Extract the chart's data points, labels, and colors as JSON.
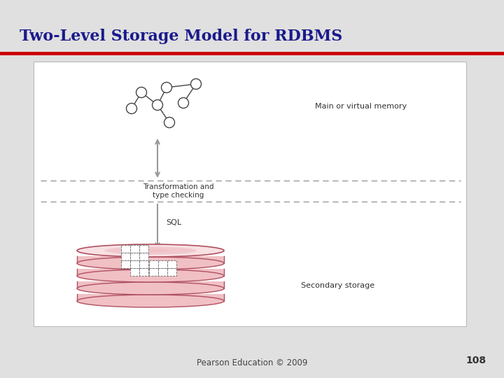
{
  "title": "Two-Level Storage Model for RDBMS",
  "title_color": "#1a1a8c",
  "title_fontsize": 16,
  "slide_bg": "#e0e0e0",
  "white_box_color": "#ffffff",
  "red_line_color": "#cc0000",
  "footer_text": "Pearson Education © 2009",
  "page_number": "108",
  "label_main_memory": "Main or virtual memory",
  "label_transform": "Transformation and\ntype checking",
  "label_sql": "SQL",
  "label_secondary": "Secondary storage",
  "arrow_color": "#999999",
  "dashed_line_color": "#999999",
  "disk_color_outer": "#b05060",
  "disk_color_inner": "#f0c0c5",
  "disk_color_top": "#f8dde0",
  "node_edge_color": "#444444",
  "text_color": "#333333"
}
